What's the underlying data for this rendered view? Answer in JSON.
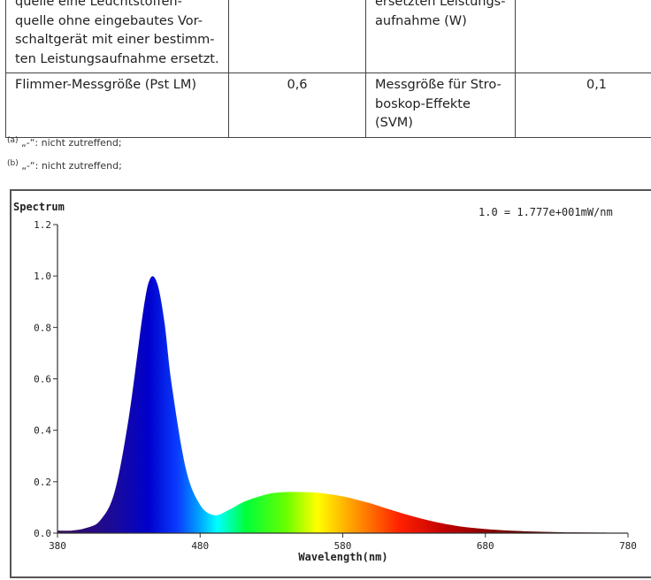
{
  "table": {
    "rows": [
      {
        "c1": [
          "quelle eine Leuchtstoffen-",
          "quelle ohne eingebautes Vor-",
          "schaltgerät mit einer bestimm-",
          "ten Leistungsaufnahme ersetzt."
        ],
        "c2": "",
        "c3": [
          "ersetzten Leistungs-",
          "aufnahme (W)"
        ],
        "c4": ""
      },
      {
        "c1": [
          "Flimmer-Messgröße (Pst LM)"
        ],
        "c2": "0,6",
        "c3": [
          "Messgröße für Stro-",
          "boskop-Effekte",
          "(SVM)"
        ],
        "c4": "0,1"
      }
    ]
  },
  "footnotes": [
    {
      "mark": "(a)",
      "text": "„-“: nicht zutreffend;"
    },
    {
      "mark": "(b)",
      "text": "„-“: nicht zutreffend;"
    }
  ],
  "chart_data": {
    "type": "area",
    "title": "Spectrum",
    "annotation": "1.0 = 1.777e+001mW/nm",
    "xlabel": "Wavelength(nm)",
    "ylabel": "",
    "xlim": [
      380,
      780
    ],
    "ylim": [
      0,
      1.2
    ],
    "x_ticks": [
      "380",
      "480",
      "580",
      "680",
      "780"
    ],
    "y_ticks": [
      "0.0",
      "0.2",
      "0.4",
      "0.6",
      "0.8",
      "1.0",
      "1.2"
    ],
    "grid": false,
    "fill": "visible-spectrum gradient",
    "x": [
      380,
      390,
      400,
      410,
      420,
      430,
      440,
      445,
      450,
      455,
      460,
      470,
      480,
      490,
      500,
      510,
      520,
      530,
      540,
      550,
      560,
      570,
      580,
      590,
      600,
      610,
      620,
      630,
      640,
      650,
      660,
      670,
      680,
      690,
      700,
      720,
      740,
      760,
      780
    ],
    "y": [
      0.01,
      0.01,
      0.02,
      0.05,
      0.16,
      0.45,
      0.86,
      0.99,
      0.97,
      0.82,
      0.58,
      0.25,
      0.11,
      0.07,
      0.09,
      0.12,
      0.14,
      0.155,
      0.16,
      0.16,
      0.158,
      0.152,
      0.143,
      0.13,
      0.115,
      0.097,
      0.08,
      0.064,
      0.05,
      0.038,
      0.028,
      0.021,
      0.016,
      0.012,
      0.009,
      0.005,
      0.003,
      0.002,
      0.001
    ]
  }
}
